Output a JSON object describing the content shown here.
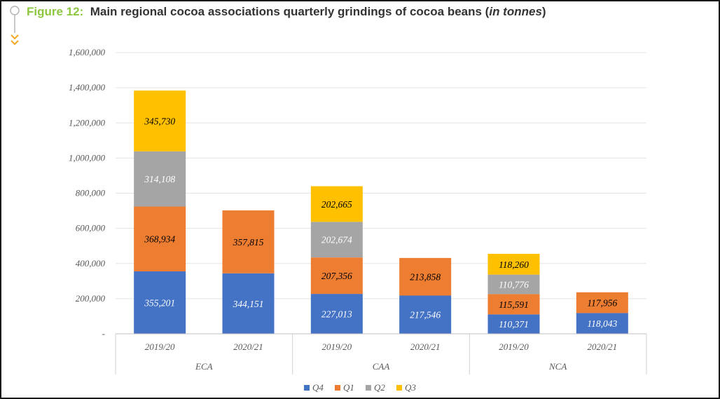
{
  "figure": {
    "number_label": "Figure 12:",
    "title_main": "Main regional cocoa associations quarterly grindings of cocoa beans (",
    "title_unit": "in tonnes",
    "title_close": ")"
  },
  "chart_data": {
    "type": "bar",
    "stacked": true,
    "title": "Main regional cocoa associations quarterly grindings of cocoa beans (in tonnes)",
    "groups": [
      {
        "name": "ECA",
        "categories": [
          "2019/20",
          "2020/21"
        ]
      },
      {
        "name": "CAA",
        "categories": [
          "2019/20",
          "2020/21"
        ]
      },
      {
        "name": "NCA",
        "categories": [
          "2019/20",
          "2020/21"
        ]
      }
    ],
    "categories": [
      "ECA 2019/20",
      "ECA 2020/21",
      "CAA 2019/20",
      "CAA 2020/21",
      "NCA 2019/20",
      "NCA 2020/21"
    ],
    "series": [
      {
        "name": "Q4",
        "color": "#4472c4",
        "label_color": "#ffffff",
        "values": [
          355201,
          344151,
          227013,
          217546,
          110371,
          118043
        ]
      },
      {
        "name": "Q1",
        "color": "#ed7d31",
        "label_color": "#000000",
        "values": [
          368934,
          357815,
          207356,
          213858,
          115591,
          117956
        ]
      },
      {
        "name": "Q2",
        "color": "#a5a5a5",
        "label_color": "#ffffff",
        "values": [
          314108,
          null,
          202674,
          null,
          110776,
          null
        ]
      },
      {
        "name": "Q3",
        "color": "#ffc000",
        "label_color": "#000000",
        "values": [
          345730,
          null,
          202665,
          null,
          118260,
          null
        ]
      }
    ],
    "value_labels": [
      [
        "355,201",
        "344,151",
        "227,013",
        "217,546",
        "110,371",
        "118,043"
      ],
      [
        "368,934",
        "357,815",
        "207,356",
        "213,858",
        "115,591",
        "117,956"
      ],
      [
        "314,108",
        "",
        "202,674",
        "",
        "110,776",
        ""
      ],
      [
        "345,730",
        "",
        "202,665",
        "",
        "118,260",
        ""
      ]
    ],
    "ylim": [
      0,
      1600000
    ],
    "y_ticks": [
      0,
      200000,
      400000,
      600000,
      800000,
      1000000,
      1200000,
      1400000,
      1600000
    ],
    "y_tick_labels": [
      "-",
      "200,000",
      "400,000",
      "600,000",
      "800,000",
      "1,000,000",
      "1,200,000",
      "1,400,000",
      "1,600,000"
    ],
    "grid": true,
    "legend_position": "bottom",
    "xlabel": "",
    "ylabel": ""
  },
  "colors": {
    "figure_number": "#8dc63f",
    "title_text": "#333333",
    "accent_arrows": "#f5a623",
    "gridline": "#e3e3e3",
    "axis_text": "#595959"
  }
}
